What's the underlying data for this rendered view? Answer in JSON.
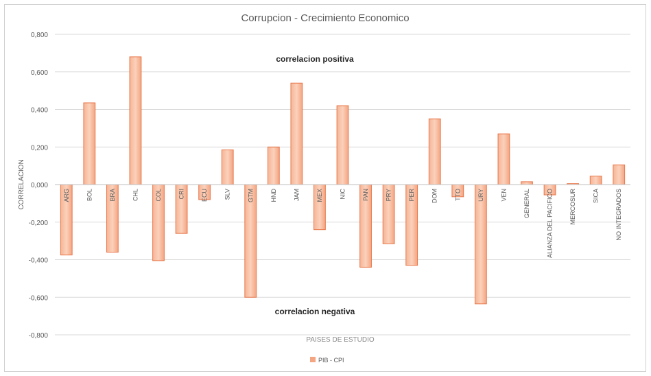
{
  "chart_data": {
    "type": "bar",
    "title": "Corrupcion  - Crecimiento  Economico",
    "xlabel": "PAISES DE ESTUDIO",
    "ylabel": "CORRELACION",
    "ylim": [
      -0.8,
      0.8
    ],
    "yticks": [
      "0,800",
      "0,600",
      "0,400",
      "0,200",
      "0,000",
      "-0,200",
      "-0,400",
      "-0,600",
      "-0,800"
    ],
    "grid": true,
    "legend_position": "bottom",
    "categories": [
      "ARG",
      "BOL",
      "BRA",
      "CHL",
      "COL",
      "CRI",
      "ECU",
      "SLV",
      "GTM",
      "HND",
      "JAM",
      "MEX",
      "NIC",
      "PAN",
      "PRY",
      "PER",
      "DOM",
      "TTO",
      "URY",
      "VEN",
      "GENERAL",
      "ALIANZA DEL PACIFICO",
      "MERCOSUR",
      "SICA",
      "NO INTEGRADOS"
    ],
    "series": [
      {
        "name": "PIB - CPI",
        "color": "#f4a582",
        "values": [
          -0.375,
          0.435,
          -0.36,
          0.68,
          -0.405,
          -0.26,
          -0.08,
          0.185,
          -0.6,
          0.2,
          0.54,
          -0.24,
          0.42,
          -0.44,
          -0.315,
          -0.43,
          0.35,
          -0.065,
          -0.635,
          0.27,
          0.015,
          -0.055,
          0.005,
          0.045,
          0.105
        ]
      }
    ],
    "annotations": [
      {
        "text": "correlacion positiva"
      },
      {
        "text": "correlacion negativa"
      }
    ]
  }
}
